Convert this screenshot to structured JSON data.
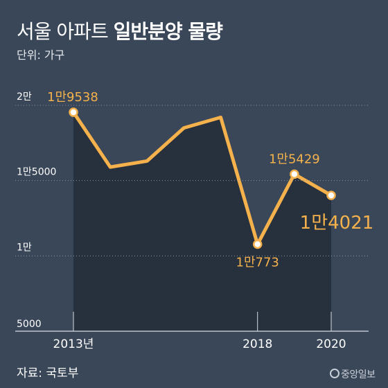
{
  "header": {
    "title_light": "서울 아파트",
    "title_bold": "일반분양 물량",
    "unit": "단위: 가구"
  },
  "footer": {
    "source": "자료: 국토부",
    "logo": "중앙일보"
  },
  "colors": {
    "background": "#3a4758",
    "area_fill": "#27303d",
    "line": "#f5b24c",
    "label": "#f5b24c",
    "gridline": "#8a96a6"
  },
  "chart_data": {
    "type": "area",
    "title": "서울 아파트 일반분양 물량",
    "ylabel": "단위: 가구",
    "ylim": [
      5000,
      20000
    ],
    "yticks": [
      {
        "value": 20000,
        "label": "2만"
      },
      {
        "value": 15000,
        "label": "1만5000"
      },
      {
        "value": 10000,
        "label": "1만"
      },
      {
        "value": 5000,
        "label": "5000"
      }
    ],
    "x": [
      2013,
      2014,
      2015,
      2016,
      2017,
      2018,
      2019,
      2020
    ],
    "xticks": [
      {
        "value": 2013,
        "label": "2013년"
      },
      {
        "value": 2018,
        "label": "2018"
      },
      {
        "value": 2020,
        "label": "2020"
      }
    ],
    "series": [
      {
        "name": "",
        "values": [
          19538,
          15900,
          16300,
          18500,
          19200,
          10773,
          15429,
          14021
        ]
      }
    ],
    "data_labels": [
      {
        "index": 0,
        "text": "1만9538",
        "position": "above",
        "size": "normal"
      },
      {
        "index": 5,
        "text": "1만773",
        "position": "below",
        "size": "normal"
      },
      {
        "index": 6,
        "text": "1만5429",
        "position": "above",
        "size": "normal"
      },
      {
        "index": 7,
        "text": "1만4021",
        "position": "below",
        "size": "large"
      }
    ],
    "grid": true
  }
}
